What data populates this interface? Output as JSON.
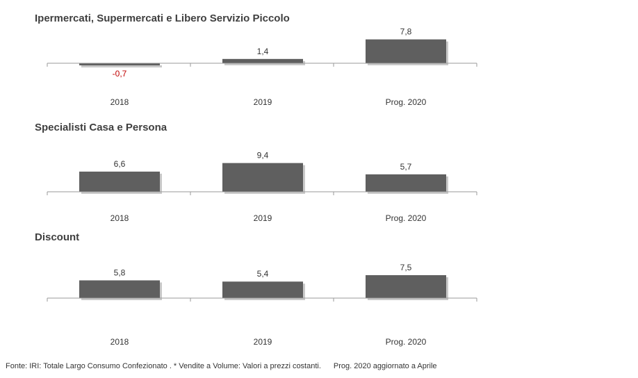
{
  "colors": {
    "bar": "#5f5f5f",
    "negative_label": "#c00000",
    "label": "#333333",
    "axis": "#9a9a9a"
  },
  "chart_data": [
    {
      "type": "bar",
      "title": "Ipermercati,  Supermercati e Libero Servizio Piccolo",
      "categories": [
        "2018",
        "2019",
        "Prog. 2020"
      ],
      "values": [
        -0.7,
        1.4,
        7.8
      ],
      "value_labels": [
        "-0,7",
        "1,4",
        "7,8"
      ],
      "xlabel": "",
      "ylabel": ""
    },
    {
      "type": "bar",
      "title": "Specialisti  Casa e Persona",
      "categories": [
        "2018",
        "2019",
        "Prog. 2020"
      ],
      "values": [
        6.6,
        9.4,
        5.7
      ],
      "value_labels": [
        "6,6",
        "9,4",
        "5,7"
      ],
      "xlabel": "",
      "ylabel": ""
    },
    {
      "type": "bar",
      "title": "Discount",
      "categories": [
        "2018",
        "2019",
        "Prog. 2020"
      ],
      "values": [
        5.8,
        5.4,
        7.5
      ],
      "value_labels": [
        "5,8",
        "5,4",
        "7,5"
      ],
      "xlabel": "",
      "ylabel": ""
    }
  ],
  "footer": {
    "source": "Fonte: IRI: Totale Largo Consumo Confezionato . * Vendite a Volume: Valori a prezzi costanti.",
    "note": "Prog. 2020 aggiornato a Aprile"
  }
}
